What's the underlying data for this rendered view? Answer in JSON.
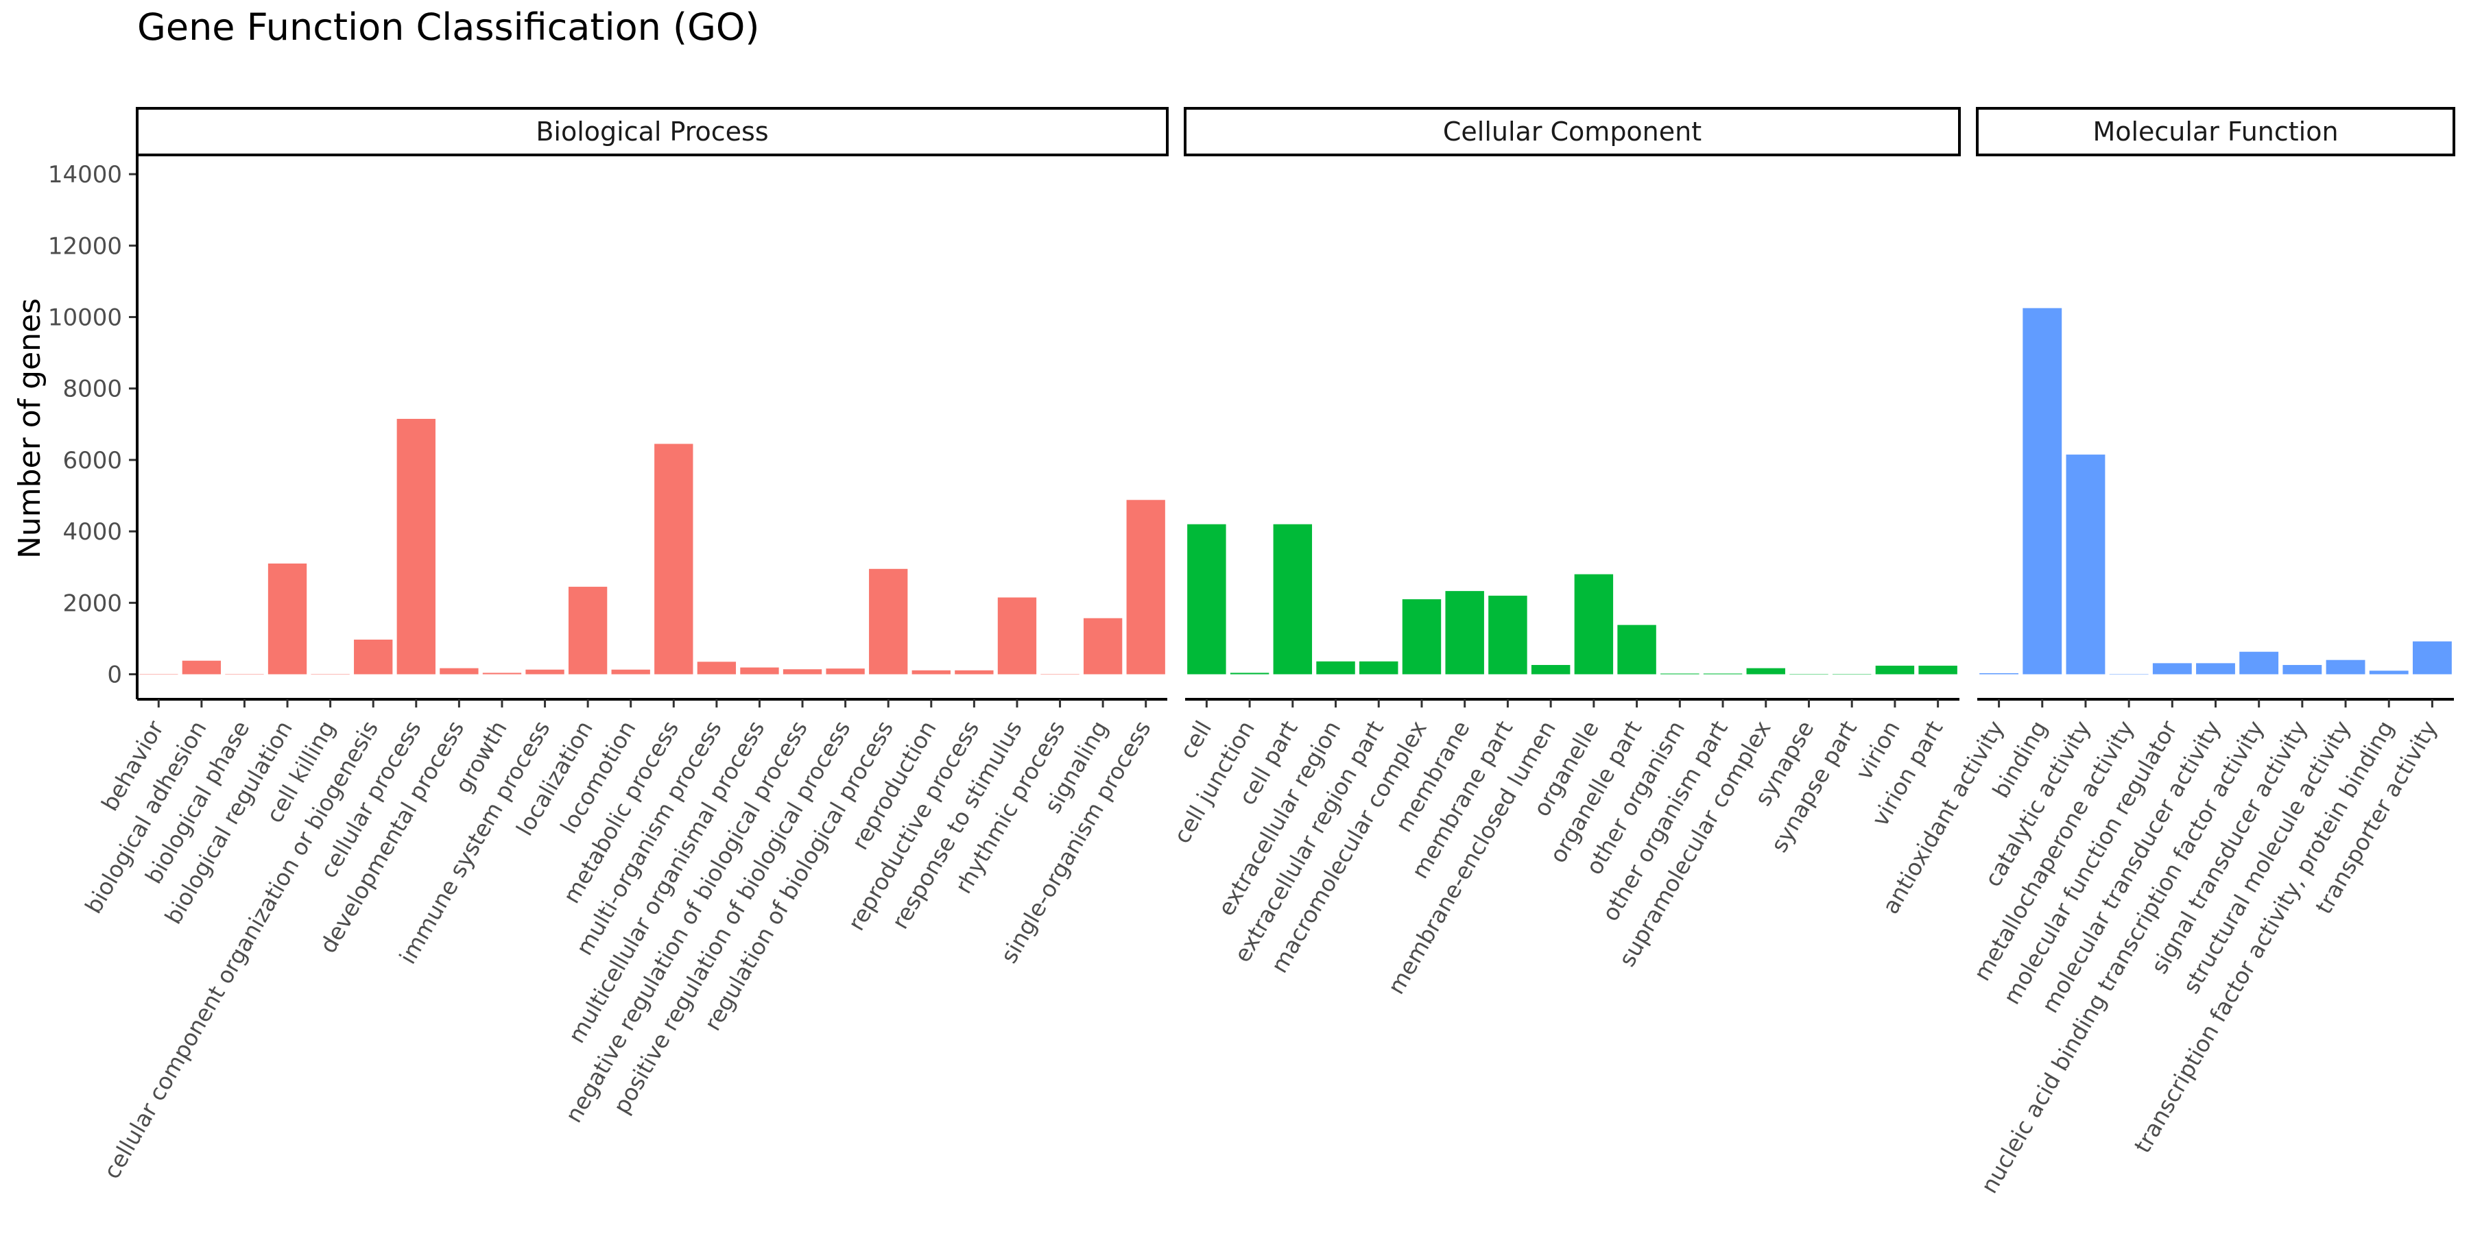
{
  "chart_data": {
    "type": "bar",
    "title": "Gene Function Classification (GO)",
    "xlabel": "",
    "ylabel": "Number of genes",
    "ylim": [
      -700,
      14500
    ],
    "yticks": [
      0,
      2000,
      4000,
      6000,
      8000,
      10000,
      12000,
      14000
    ],
    "grid": false,
    "legend": "none",
    "facets": [
      {
        "name": "Biological Process",
        "color": "#F8766D",
        "categories": [
          "behavior",
          "biological adhesion",
          "biological phase",
          "biological regulation",
          "cell killing",
          "cellular component organization or biogenesis",
          "cellular process",
          "developmental process",
          "growth",
          "immune system process",
          "localization",
          "locomotion",
          "metabolic process",
          "multi-organism process",
          "multicellular organismal process",
          "negative regulation of biological process",
          "positive regulation of biological process",
          "regulation of biological process",
          "reproduction",
          "reproductive process",
          "response to stimulus",
          "rhythmic process",
          "signaling",
          "single-organism process"
        ],
        "values": [
          2,
          380,
          5,
          3100,
          2,
          970,
          7150,
          170,
          40,
          130,
          2450,
          130,
          6450,
          350,
          190,
          140,
          160,
          2950,
          110,
          110,
          2150,
          3,
          1570,
          4880
        ]
      },
      {
        "name": "Cellular Component",
        "color": "#00BA38",
        "categories": [
          "cell",
          "cell junction",
          "cell part",
          "extracellular region",
          "extracellular region part",
          "macromolecular complex",
          "membrane",
          "membrane part",
          "membrane-enclosed lumen",
          "organelle",
          "organelle part",
          "other organism",
          "other organism part",
          "supramolecular complex",
          "synapse",
          "synapse part",
          "virion",
          "virion part"
        ],
        "values": [
          4200,
          40,
          4200,
          360,
          360,
          2100,
          2330,
          2200,
          260,
          2800,
          1380,
          20,
          20,
          170,
          3,
          3,
          240,
          240
        ]
      },
      {
        "name": "Molecular Function",
        "color": "#619CFF",
        "categories": [
          "antioxidant activity",
          "binding",
          "catalytic activity",
          "metallochaperone activity",
          "molecular function regulator",
          "molecular transducer activity",
          "nucleic acid binding transcription factor activity",
          "signal transducer activity",
          "structural molecule activity",
          "transcription factor activity, protein binding",
          "transporter activity"
        ],
        "values": [
          30,
          10250,
          6150,
          3,
          310,
          310,
          630,
          260,
          400,
          100,
          920
        ]
      }
    ]
  }
}
